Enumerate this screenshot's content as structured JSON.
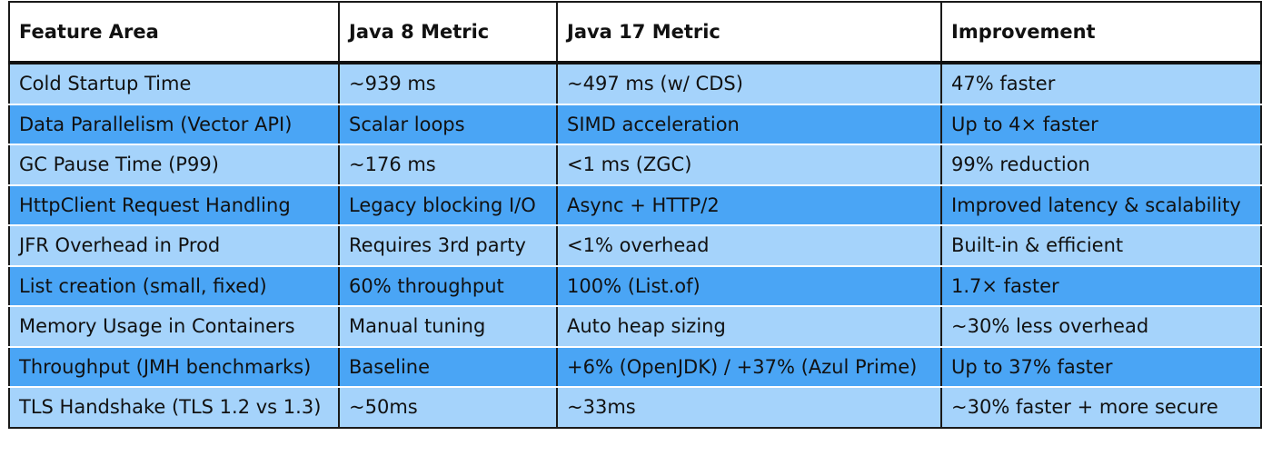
{
  "table": {
    "headers": [
      "Feature Area",
      "Java 8 Metric",
      "Java 17 Metric",
      "Improvement"
    ],
    "rows": [
      [
        "Cold Startup Time",
        "~939 ms",
        "~497 ms (w/ CDS)",
        "47% faster"
      ],
      [
        "Data Parallelism (Vector API)",
        "Scalar loops",
        "SIMD acceleration",
        "Up to 4× faster"
      ],
      [
        "GC Pause Time (P99)",
        "~176 ms",
        "<1 ms (ZGC)",
        "99% reduction"
      ],
      [
        "HttpClient Request Handling",
        "Legacy blocking I/O",
        "Async + HTTP/2",
        "Improved latency & scalability"
      ],
      [
        "JFR Overhead in Prod",
        "Requires 3rd party",
        "<1% overhead",
        "Built-in & efficient"
      ],
      [
        "List creation (small, fixed)",
        "60% throughput",
        "100% (List.of)",
        "1.7× faster"
      ],
      [
        "Memory Usage in Containers",
        "Manual tuning",
        "Auto heap sizing",
        "~30% less overhead"
      ],
      [
        "Throughput (JMH benchmarks)",
        "Baseline",
        "+6% (OpenJDK) / +37% (Azul Prime)",
        "Up to 37% faster"
      ],
      [
        "TLS Handshake (TLS 1.2 vs 1.3)",
        "~50ms",
        "~33ms",
        "~30% faster + more secure"
      ]
    ]
  },
  "colors": {
    "row_light": "#a5d3fb",
    "row_dark": "#4aa5f5",
    "header_bg": "#ffffff",
    "border": "#1a1a1a"
  }
}
